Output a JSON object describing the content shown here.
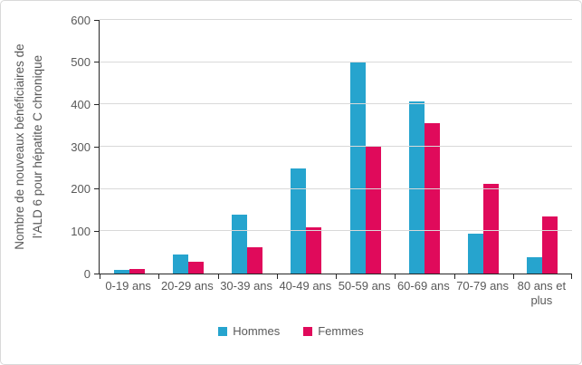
{
  "chart_data": {
    "type": "bar",
    "title": "",
    "categories": [
      "0-19 ans",
      "20-29 ans",
      "30-39 ans",
      "40-49 ans",
      "50-59 ans",
      "60-69 ans",
      "70-79 ans",
      "80 ans et plus"
    ],
    "series": [
      {
        "name": "Hommes",
        "color": "#26a4ce",
        "values": [
          8,
          45,
          140,
          248,
          500,
          408,
          95,
          38
        ]
      },
      {
        "name": "Femmes",
        "color": "#e00a5b",
        "values": [
          11,
          28,
          62,
          110,
          303,
          355,
          213,
          135
        ]
      }
    ],
    "xlabel": "",
    "ylabel": "Nombre de nouveaux bénéficiaires de l'ALD 6 pour hépatite C chronique",
    "ylabel_lines": [
      "Nombre de nouveaux bénéficiaires de",
      "l'ALD 6 pour hépatite C chronique"
    ],
    "ylim": [
      0,
      600
    ],
    "yticks": [
      0,
      100,
      200,
      300,
      400,
      500,
      600
    ],
    "grid": true,
    "legend_position": "bottom",
    "colors": {
      "axis_text": "#595959",
      "axis_line": "#262626",
      "gridline": "#d9d9d9",
      "frame_border": "#d9d9d9",
      "background": "#ffffff"
    }
  }
}
